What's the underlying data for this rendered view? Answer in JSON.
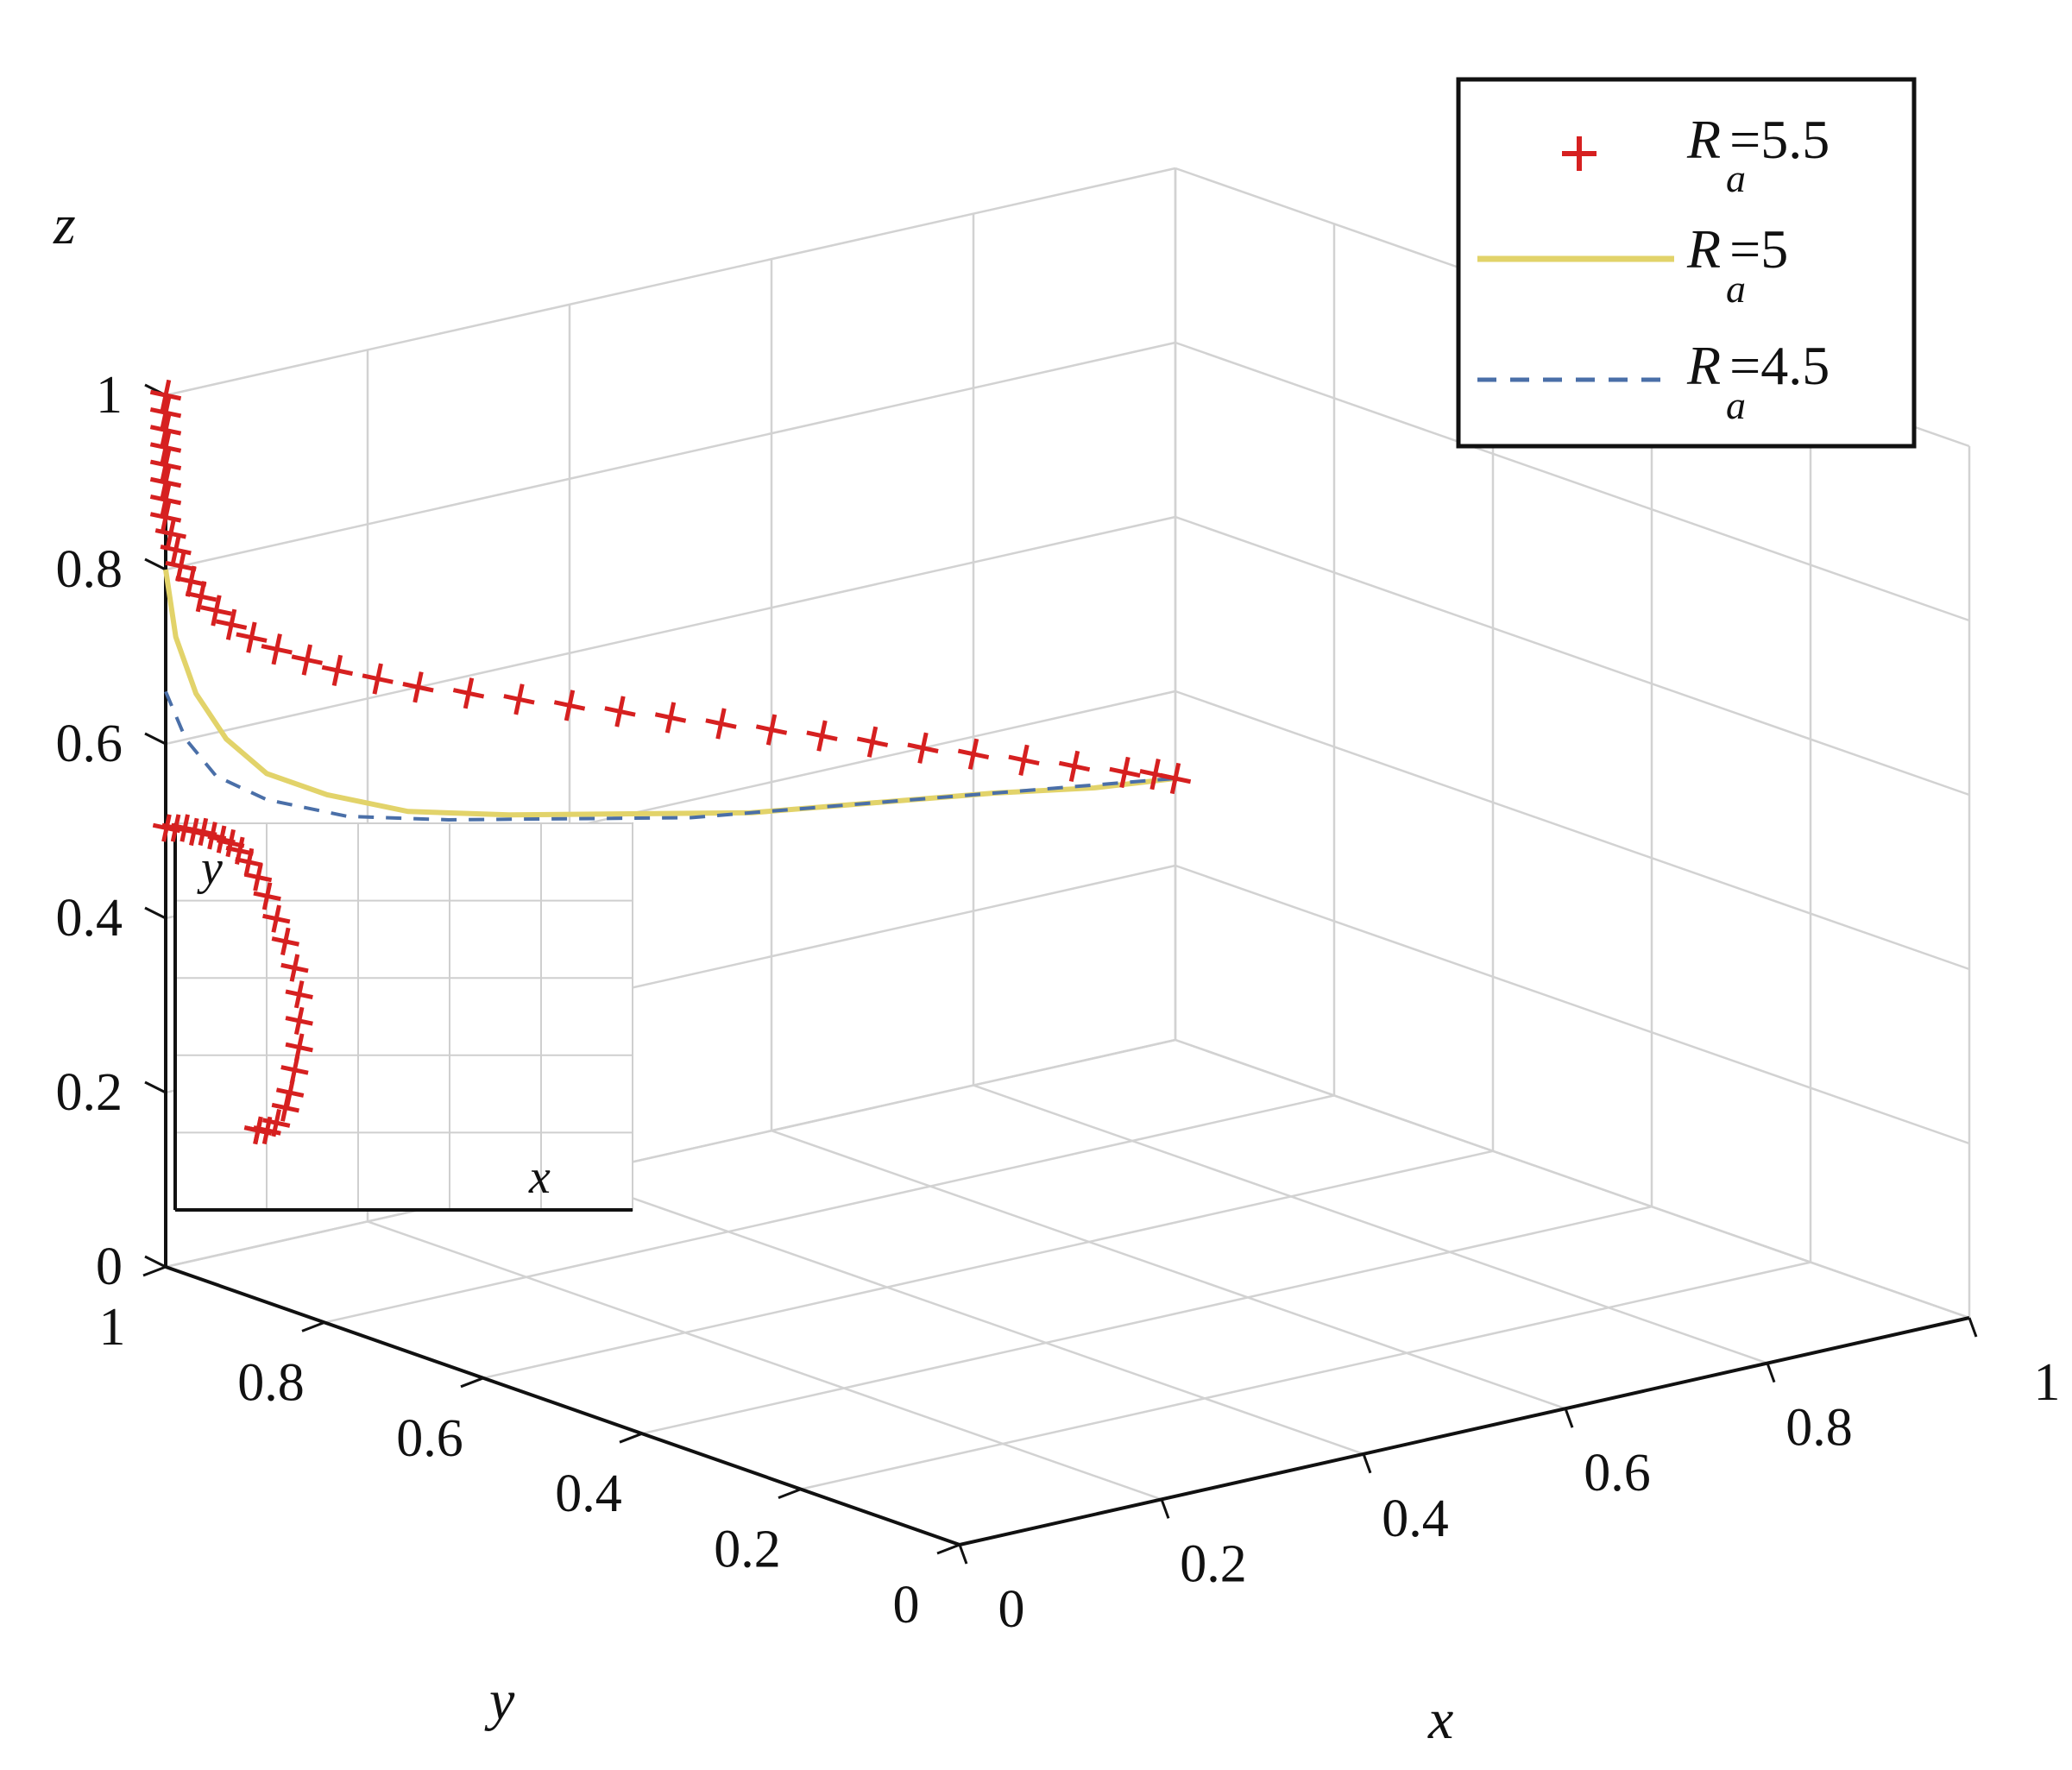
{
  "chart_data": {
    "type": "line",
    "projection": "3d",
    "axes": {
      "x": {
        "label": "x",
        "range": [
          0,
          1
        ],
        "ticks": [
          "0",
          "0.2",
          "0.4",
          "0.6",
          "0.8",
          "1"
        ]
      },
      "y": {
        "label": "y",
        "range": [
          0,
          1
        ],
        "ticks": [
          "0",
          "0.2",
          "0.4",
          "0.6",
          "0.8",
          "1"
        ]
      },
      "z": {
        "label": "z",
        "range": [
          0,
          1
        ],
        "ticks": [
          "0",
          "0.2",
          "0.4",
          "0.6",
          "0.8",
          "1"
        ]
      }
    },
    "grid": true,
    "legend": {
      "placement": "top-right",
      "entries": [
        {
          "symbol": "R",
          "subscript": "a",
          "suffix": "=5.5",
          "style": "red plus markers"
        },
        {
          "symbol": "R",
          "subscript": "a",
          "suffix": "=5",
          "style": "yellow solid line"
        },
        {
          "symbol": "R",
          "subscript": "a",
          "suffix": "=4.5",
          "style": "blue dashed line"
        }
      ]
    },
    "series": [
      {
        "name": "R_a=5.5",
        "color": "#d62020",
        "marker": "plus",
        "x": [
          0,
          0,
          0,
          0,
          0,
          0,
          0,
          0,
          0.005,
          0.01,
          0.015,
          0.025,
          0.035,
          0.05,
          0.065,
          0.085,
          0.11,
          0.14,
          0.17,
          0.21,
          0.25,
          0.3,
          0.35,
          0.4,
          0.45,
          0.5,
          0.55,
          0.6,
          0.65,
          0.7,
          0.75,
          0.8,
          0.85,
          0.9,
          0.95,
          0.98,
          1
        ],
        "y": [
          1,
          1,
          1,
          1,
          1,
          1,
          1,
          1,
          1,
          1,
          1,
          1,
          1,
          1,
          1,
          1,
          1,
          1,
          1,
          1,
          1,
          1,
          1,
          1,
          1,
          1,
          1,
          1,
          1,
          1,
          1,
          1,
          1,
          1,
          1,
          1,
          1
        ],
        "z": [
          1,
          0.98,
          0.96,
          0.94,
          0.92,
          0.9,
          0.88,
          0.86,
          0.84,
          0.82,
          0.8,
          0.78,
          0.76,
          0.74,
          0.72,
          0.7,
          0.68,
          0.66,
          0.64,
          0.62,
          0.6,
          0.58,
          0.56,
          0.54,
          0.52,
          0.5,
          0.48,
          0.46,
          0.44,
          0.42,
          0.4,
          0.38,
          0.36,
          0.34,
          0.32,
          0.31,
          0.3
        ]
      },
      {
        "name": "R_a=5",
        "color": "#e2d36a",
        "x": [
          0,
          0.01,
          0.03,
          0.06,
          0.1,
          0.16,
          0.24,
          0.34,
          0.46,
          0.58,
          0.7,
          0.82,
          0.92,
          1
        ],
        "y": [
          1,
          1,
          1,
          1,
          1,
          1,
          1,
          1,
          1,
          1,
          1,
          1,
          1,
          1
        ],
        "z": [
          0.8,
          0.72,
          0.65,
          0.59,
          0.54,
          0.5,
          0.46,
          0.43,
          0.4,
          0.37,
          0.35,
          0.33,
          0.31,
          0.3
        ]
      },
      {
        "name": "R_a=4.5",
        "color": "#4a6fa8",
        "x": [
          0,
          0.02,
          0.05,
          0.1,
          0.18,
          0.28,
          0.4,
          0.52,
          0.64,
          0.76,
          0.88,
          1
        ],
        "y": [
          1,
          1,
          1,
          1,
          1,
          1,
          1,
          1,
          1,
          1,
          1,
          1
        ],
        "z": [
          0.66,
          0.6,
          0.55,
          0.51,
          0.47,
          0.44,
          0.41,
          0.38,
          0.36,
          0.34,
          0.32,
          0.3
        ]
      }
    ],
    "inset": {
      "type": "line",
      "xlabel": "x",
      "ylabel": "y",
      "grid": true,
      "series": [
        {
          "name": "R_a=5.5",
          "color": "#d62020",
          "marker": "plus",
          "x": [
            0,
            0.02,
            0.04,
            0.06,
            0.08,
            0.1,
            0.12,
            0.14,
            0.16,
            0.18,
            0.2,
            0.22,
            0.24,
            0.26,
            0.28,
            0.29,
            0.29,
            0.29,
            0.28,
            0.27,
            0.26,
            0.24,
            0.22,
            0.2,
            0.2,
            0.2
          ],
          "y": [
            1,
            1,
            1,
            0.99,
            0.99,
            0.98,
            0.97,
            0.96,
            0.94,
            0.91,
            0.87,
            0.82,
            0.76,
            0.7,
            0.63,
            0.56,
            0.49,
            0.42,
            0.36,
            0.3,
            0.26,
            0.22,
            0.2,
            0.2,
            0.2,
            0.2
          ]
        }
      ]
    }
  }
}
